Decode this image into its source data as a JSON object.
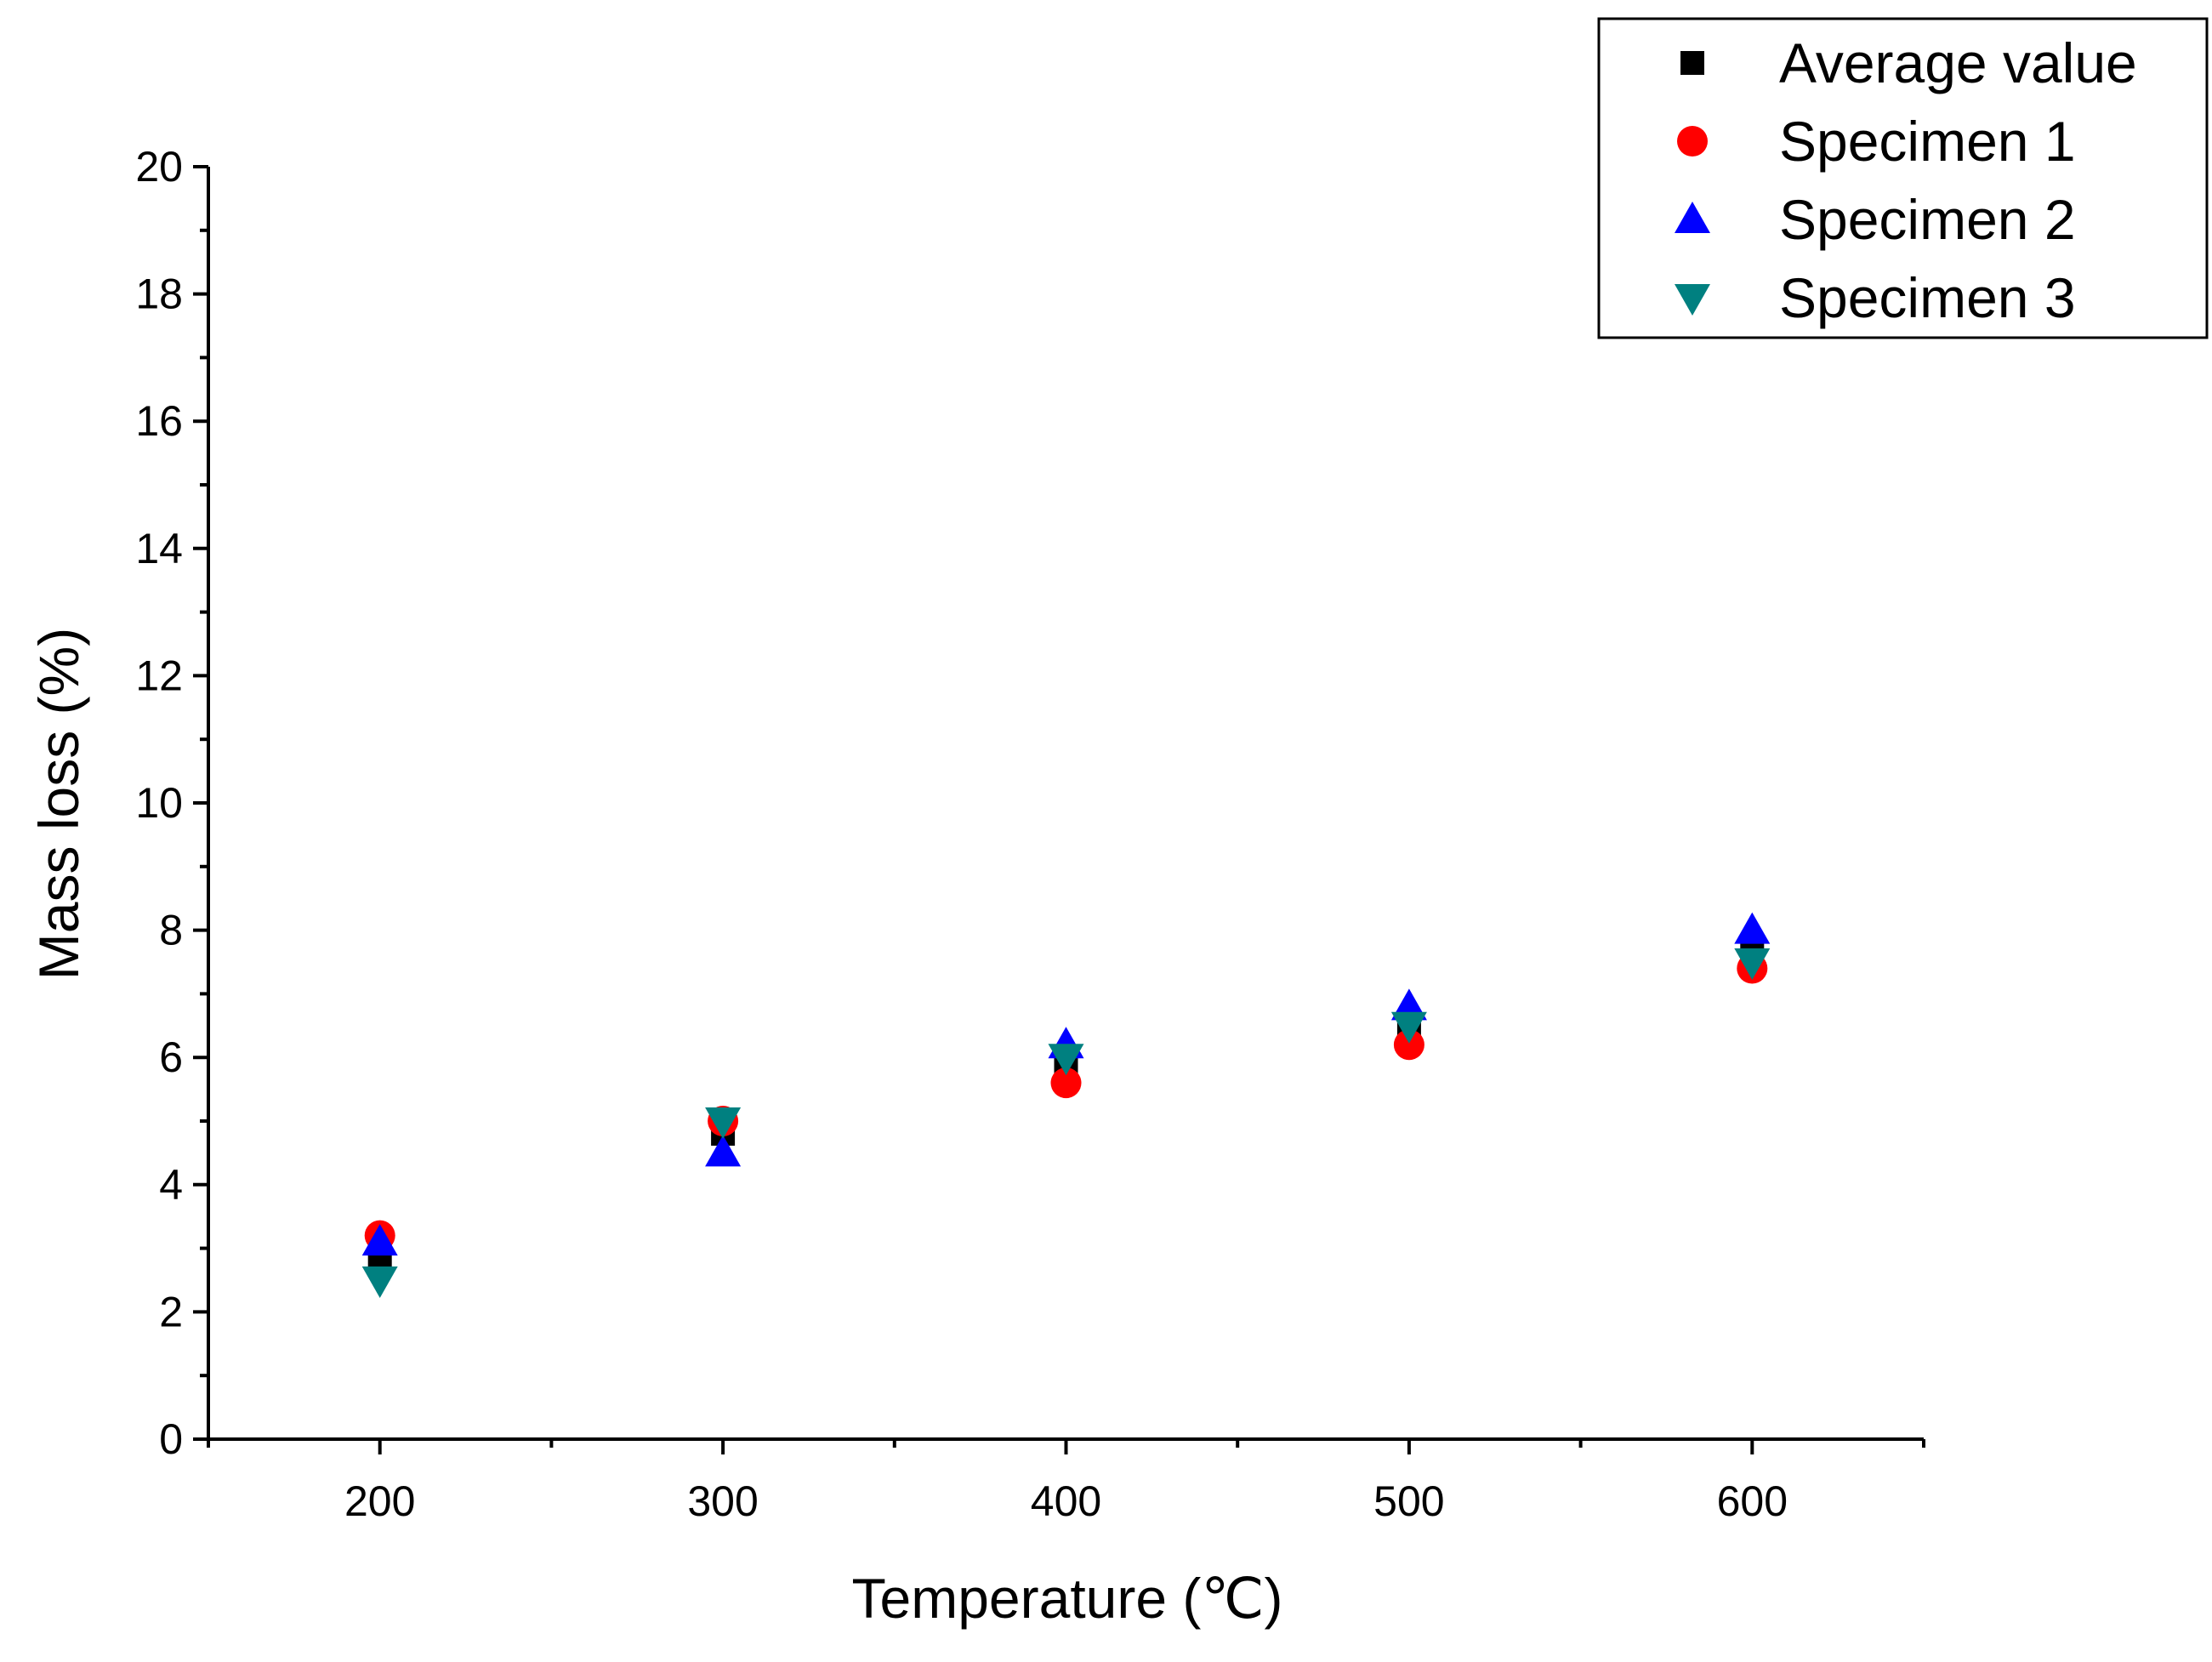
{
  "chart_data": {
    "type": "scatter",
    "title": "",
    "xlabel": "Temperature (℃)",
    "ylabel": "Mass loss (%)",
    "xlim": [
      150,
      650
    ],
    "ylim": [
      0,
      20
    ],
    "x_ticks": [
      200,
      300,
      400,
      500,
      600
    ],
    "y_ticks": [
      0,
      2,
      4,
      6,
      8,
      10,
      12,
      14,
      16,
      18,
      20
    ],
    "legend_position": "top-right",
    "series": [
      {
        "name": "Average value",
        "marker": "square",
        "color": "#000000",
        "x": [
          200,
          300,
          400,
          500,
          600
        ],
        "y": [
          2.9,
          4.8,
          5.9,
          6.5,
          7.7
        ]
      },
      {
        "name": "Specimen 1",
        "marker": "circle",
        "color": "#ff0000",
        "x": [
          200,
          300,
          400,
          500,
          600
        ],
        "y": [
          3.2,
          5.0,
          5.6,
          6.2,
          7.4
        ]
      },
      {
        "name": "Specimen 2",
        "marker": "triangle-up",
        "color": "#0000ff",
        "x": [
          200,
          300,
          400,
          500,
          600
        ],
        "y": [
          3.1,
          4.5,
          6.2,
          6.8,
          8.0
        ]
      },
      {
        "name": "Specimen 3",
        "marker": "triangle-down",
        "color": "#008080",
        "x": [
          200,
          300,
          400,
          500,
          600
        ],
        "y": [
          2.5,
          5.0,
          6.0,
          6.5,
          7.5
        ]
      }
    ]
  }
}
